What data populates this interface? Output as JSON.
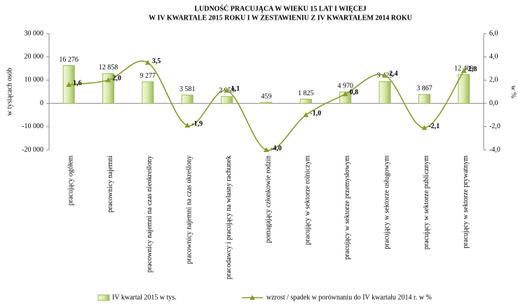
{
  "chart_data": {
    "type": "bar_line",
    "title": [
      "LUDNOŚĆ PRACUJĄCA W  WIEKU  15  LAT  I WIĘCEJ",
      "W IV KWARTALE  2015  ROKU I W ZESTAWIENIU Z IV KWARTAŁEM  2014 ROKU"
    ],
    "y_label": "w tysiącach osób",
    "y2_label": "w %",
    "categories": [
      "pracujący ogółem",
      "pracownicy najemni",
      "pracownicy najemni na czas nieokreślony",
      "pracownicy najemni na czas określony",
      "pracodawcy i pracujący na własny rachunek",
      "pomagający członkowie rodzin",
      "pracujący w sektorze rolniczym",
      "pracujący w sektorze przemysłowym",
      "pracujący w sektorze usługowym",
      "pracujący w sektorze publicznym",
      "pracujący w sektorze prywatnym"
    ],
    "series": [
      {
        "name": "IV kwartał 2015 w tys.",
        "color": "#9bbb59",
        "type": "bar",
        "values": [
          16276,
          12858,
          9277,
          3581,
          2959,
          459,
          1825,
          4970,
          9425,
          3867,
          12409
        ],
        "value_labels": [
          "16 276",
          "12 858",
          "9 277",
          "3 581",
          "2 959",
          "459",
          "1 825",
          "4 970",
          "9 425",
          "3 867",
          "12 409"
        ]
      },
      {
        "name": "wzrost / spadek w porównaniu do IV kwartału 2014 r. w %",
        "color": "#8a9a2a",
        "type": "line",
        "axis": "y2",
        "values": [
          1.6,
          2.0,
          3.5,
          -1.9,
          1.1,
          -4.0,
          -1.0,
          0.8,
          2.4,
          -2.1,
          2.8
        ],
        "value_labels": [
          "1,6",
          "2,0",
          "3,5",
          "-1,9",
          "1,1",
          "-4,0",
          "-1,0",
          "0,8",
          "2,4",
          "-2,1",
          "2,8"
        ]
      }
    ],
    "ylim": [
      -20000,
      30000
    ],
    "yticks": [
      {
        "value": -20000,
        "label": "-20 000"
      },
      {
        "value": -10000,
        "label": "-10 000"
      },
      0,
      {
        "value": 10000,
        "label": "10 000"
      },
      {
        "value": 20000,
        "label": "20 000"
      },
      {
        "value": 30000,
        "label": "30 000"
      }
    ],
    "y2lim": [
      -4,
      6
    ],
    "y2ticks": [
      {
        "value": -4,
        "label": "-4,0"
      },
      {
        "value": -2,
        "label": "-2,0"
      },
      {
        "value": 0,
        "label": "0,0"
      },
      {
        "value": 2,
        "label": "2,0"
      },
      {
        "value": 4,
        "label": "4,0"
      },
      {
        "value": 6,
        "label": "6,0"
      }
    ],
    "legend": "bottom"
  }
}
